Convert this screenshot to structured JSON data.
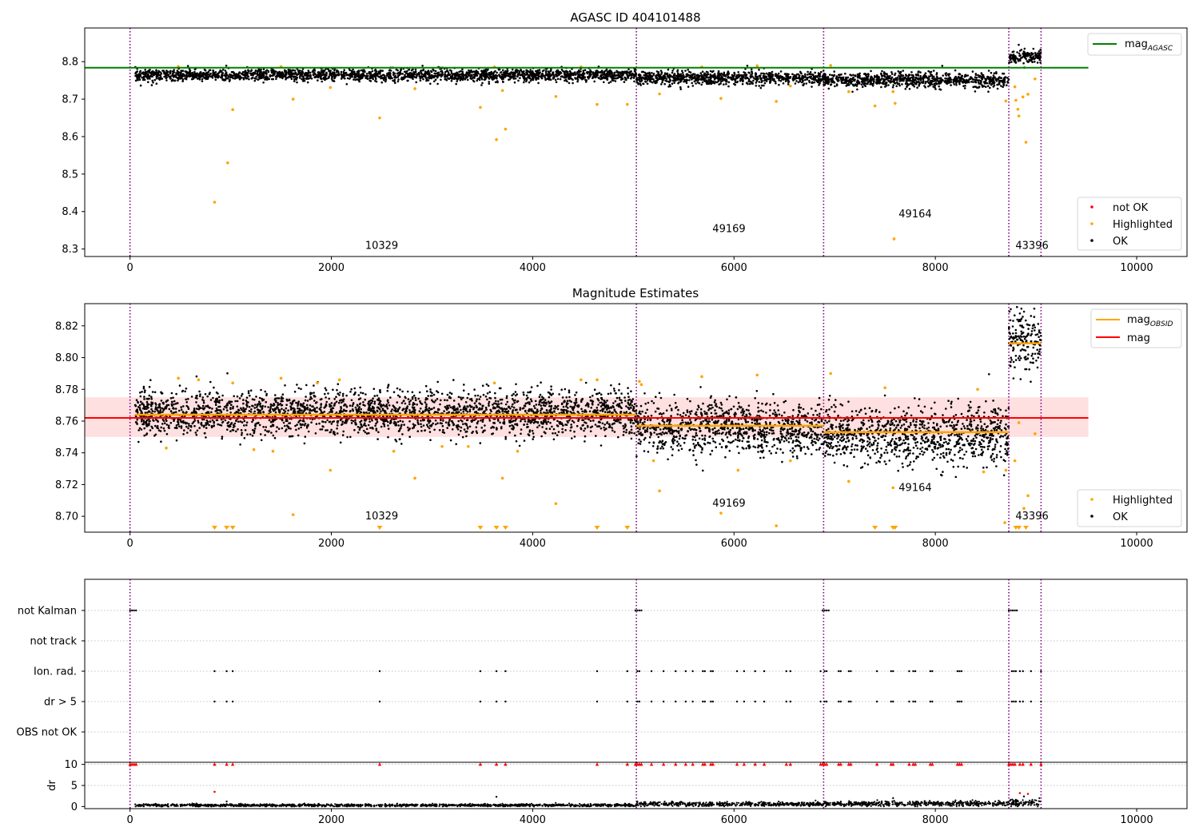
{
  "chart_data": [
    {
      "type": "scatter",
      "title": "AGASC ID 404101488",
      "xlim": [
        -450,
        10500
      ],
      "ylim": [
        8.28,
        8.89
      ],
      "xticks": [
        0,
        2000,
        4000,
        6000,
        8000,
        10000
      ],
      "yticks": [
        8.3,
        8.4,
        8.5,
        8.6,
        8.7,
        8.8
      ],
      "obsid_boundaries": [
        0,
        5030,
        6890,
        8730,
        9050
      ],
      "obsid_labels": [
        {
          "text": "10329",
          "x": 2500,
          "y": 8.3
        },
        {
          "text": "49169",
          "x": 5950,
          "y": 8.345
        },
        {
          "text": "49164",
          "x": 7800,
          "y": 8.385
        },
        {
          "text": "43396",
          "x": 8960,
          "y": 8.3
        }
      ],
      "mag_agasc": {
        "name": "magAGASC",
        "value": 8.784,
        "x_range": [
          -450,
          9520
        ],
        "color": "#008000"
      },
      "segments": [
        {
          "x": [
            50,
            5030
          ],
          "mean": 8.764,
          "spread": 0.008
        },
        {
          "x": [
            5030,
            6890
          ],
          "mean": 8.757,
          "spread": 0.009
        },
        {
          "x": [
            6890,
            8730
          ],
          "mean": 8.751,
          "spread": 0.01
        },
        {
          "x": [
            8730,
            9050
          ],
          "mean": 8.812,
          "spread": 0.01
        }
      ],
      "highlighted": [
        {
          "x": 840,
          "y": 8.425
        },
        {
          "x": 970,
          "y": 8.53
        },
        {
          "x": 1020,
          "y": 8.672
        },
        {
          "x": 1620,
          "y": 8.7
        },
        {
          "x": 2480,
          "y": 8.65
        },
        {
          "x": 3480,
          "y": 8.678
        },
        {
          "x": 3640,
          "y": 8.592
        },
        {
          "x": 3730,
          "y": 8.62
        },
        {
          "x": 3700,
          "y": 8.723
        },
        {
          "x": 4230,
          "y": 8.707
        },
        {
          "x": 4640,
          "y": 8.686
        },
        {
          "x": 4940,
          "y": 8.686
        },
        {
          "x": 5260,
          "y": 8.714
        },
        {
          "x": 5870,
          "y": 8.702
        },
        {
          "x": 6420,
          "y": 8.694
        },
        {
          "x": 7140,
          "y": 8.72
        },
        {
          "x": 7400,
          "y": 8.682
        },
        {
          "x": 7580,
          "y": 8.72
        },
        {
          "x": 7600,
          "y": 8.689
        },
        {
          "x": 7590,
          "y": 8.327
        },
        {
          "x": 8700,
          "y": 8.695
        },
        {
          "x": 8790,
          "y": 8.733
        },
        {
          "x": 8800,
          "y": 8.697
        },
        {
          "x": 8820,
          "y": 8.673
        },
        {
          "x": 8830,
          "y": 8.655
        },
        {
          "x": 8870,
          "y": 8.706
        },
        {
          "x": 8900,
          "y": 8.585
        },
        {
          "x": 8920,
          "y": 8.713
        },
        {
          "x": 8990,
          "y": 8.754
        },
        {
          "x": 480,
          "y": 8.787
        },
        {
          "x": 1500,
          "y": 8.787
        },
        {
          "x": 3620,
          "y": 8.786
        },
        {
          "x": 4480,
          "y": 8.786
        },
        {
          "x": 5680,
          "y": 8.786
        },
        {
          "x": 6230,
          "y": 8.789
        },
        {
          "x": 6960,
          "y": 8.79
        },
        {
          "x": 1990,
          "y": 8.731
        },
        {
          "x": 2830,
          "y": 8.728
        },
        {
          "x": 6560,
          "y": 8.735
        }
      ],
      "not_ok": [],
      "legend": [
        {
          "label": "not OK",
          "color": "#ff0000"
        },
        {
          "label": "Highlighted",
          "color": "#ffa500"
        },
        {
          "label": "OK",
          "color": "#000000"
        }
      ],
      "line_legend": [
        {
          "label": "mag",
          "subscript": "AGASC",
          "color": "#008000"
        }
      ]
    },
    {
      "type": "scatter",
      "title": "Magnitude Estimates",
      "xlim": [
        -450,
        10500
      ],
      "ylim": [
        8.69,
        8.834
      ],
      "xticks": [
        0,
        2000,
        4000,
        6000,
        8000,
        10000
      ],
      "yticks": [
        8.7,
        8.72,
        8.74,
        8.76,
        8.78,
        8.8,
        8.82
      ],
      "obsid_boundaries": [
        0,
        5030,
        6890,
        8730,
        9050
      ],
      "obsid_labels": [
        {
          "text": "10329",
          "x": 2500,
          "y": 8.698
        },
        {
          "text": "49169",
          "x": 5950,
          "y": 8.706
        },
        {
          "text": "49164",
          "x": 7800,
          "y": 8.716
        },
        {
          "text": "43396",
          "x": 8960,
          "y": 8.698
        }
      ],
      "mag": {
        "value": 8.762,
        "band": [
          8.75,
          8.775
        ],
        "x_range": [
          -450,
          9520
        ],
        "color": "#ff0000"
      },
      "mag_obsid": [
        {
          "x": [
            50,
            5030
          ],
          "value": 8.764
        },
        {
          "x": [
            5030,
            6890
          ],
          "value": 8.757
        },
        {
          "x": [
            6890,
            8730
          ],
          "value": 8.753
        },
        {
          "x": [
            8730,
            9050
          ],
          "value": 8.809
        }
      ],
      "segments": [
        {
          "x": [
            50,
            5030
          ],
          "mean": 8.765,
          "spread": 0.007
        },
        {
          "x": [
            5030,
            6890
          ],
          "mean": 8.756,
          "spread": 0.008
        },
        {
          "x": [
            6890,
            8730
          ],
          "mean": 8.751,
          "spread": 0.009
        },
        {
          "x": [
            8730,
            9050
          ],
          "mean": 8.812,
          "spread": 0.01
        }
      ],
      "highlighted": [
        {
          "x": 360,
          "y": 8.743
        },
        {
          "x": 480,
          "y": 8.787
        },
        {
          "x": 680,
          "y": 8.786
        },
        {
          "x": 1020,
          "y": 8.784
        },
        {
          "x": 1230,
          "y": 8.742
        },
        {
          "x": 1420,
          "y": 8.741
        },
        {
          "x": 1500,
          "y": 8.787
        },
        {
          "x": 1620,
          "y": 8.701
        },
        {
          "x": 1860,
          "y": 8.784
        },
        {
          "x": 1990,
          "y": 8.729
        },
        {
          "x": 2080,
          "y": 8.786
        },
        {
          "x": 2620,
          "y": 8.741
        },
        {
          "x": 2830,
          "y": 8.724
        },
        {
          "x": 3100,
          "y": 8.744
        },
        {
          "x": 3360,
          "y": 8.744
        },
        {
          "x": 3620,
          "y": 8.784
        },
        {
          "x": 3700,
          "y": 8.724
        },
        {
          "x": 3850,
          "y": 8.741
        },
        {
          "x": 4230,
          "y": 8.708
        },
        {
          "x": 4480,
          "y": 8.786
        },
        {
          "x": 4640,
          "y": 8.786
        },
        {
          "x": 5060,
          "y": 8.785
        },
        {
          "x": 5080,
          "y": 8.783
        },
        {
          "x": 5200,
          "y": 8.735
        },
        {
          "x": 5260,
          "y": 8.716
        },
        {
          "x": 5680,
          "y": 8.788
        },
        {
          "x": 5870,
          "y": 8.702
        },
        {
          "x": 6040,
          "y": 8.729
        },
        {
          "x": 6230,
          "y": 8.789
        },
        {
          "x": 6420,
          "y": 8.694
        },
        {
          "x": 6560,
          "y": 8.735
        },
        {
          "x": 6960,
          "y": 8.79
        },
        {
          "x": 7140,
          "y": 8.722
        },
        {
          "x": 7500,
          "y": 8.781
        },
        {
          "x": 7580,
          "y": 8.718
        },
        {
          "x": 8420,
          "y": 8.78
        },
        {
          "x": 8480,
          "y": 8.728
        },
        {
          "x": 8700,
          "y": 8.729
        },
        {
          "x": 8790,
          "y": 8.735
        },
        {
          "x": 8830,
          "y": 8.759
        },
        {
          "x": 8920,
          "y": 8.713
        },
        {
          "x": 8990,
          "y": 8.752
        },
        {
          "x": 8690,
          "y": 8.696
        },
        {
          "x": 8880,
          "y": 8.705
        }
      ],
      "below_axis_markers": [
        840,
        960,
        1020,
        2480,
        3480,
        3640,
        3730,
        4640,
        4940,
        7400,
        7580,
        7600,
        8800,
        8830,
        8900
      ],
      "legend": [
        {
          "label": "Highlighted",
          "color": "#ffa500"
        },
        {
          "label": "OK",
          "color": "#000000"
        }
      ],
      "line_legend": [
        {
          "label": "mag",
          "subscript": "OBSID",
          "color": "#ffa500"
        },
        {
          "label": "mag",
          "subscript": "",
          "color": "#ff0000"
        }
      ]
    },
    {
      "type": "scatter",
      "title": "",
      "xlim": [
        -450,
        10500
      ],
      "categories": [
        "not Kalman",
        "not track",
        "Ion. rad.",
        "dr > 5",
        "OBS not OK"
      ],
      "obsid_boundaries": [
        0,
        5030,
        6890,
        8730,
        9050
      ],
      "flags": {
        "not Kalman": [
          0,
          20,
          40,
          60,
          5020,
          5040,
          5060,
          5080,
          6880,
          6900,
          6920,
          6940,
          8730,
          8750,
          8770,
          8790,
          8810
        ],
        "not track": [],
        "Ion. rad.": [
          840,
          960,
          1020,
          2480,
          3480,
          3640,
          3730,
          4640,
          4940,
          5040,
          5060,
          5180,
          5300,
          5420,
          5520,
          5590,
          5690,
          5710,
          5770,
          5790,
          6030,
          6100,
          6210,
          6300,
          6520,
          6560,
          6860,
          6900,
          6920,
          7040,
          7060,
          7140,
          7160,
          7420,
          7560,
          7580,
          7740,
          7780,
          7800,
          7950,
          7970,
          8220,
          8240,
          8260,
          8760,
          8780,
          8800,
          8840,
          8870,
          8950,
          9050
        ],
        "dr > 5": [
          840,
          960,
          1020,
          2480,
          3480,
          3640,
          3730,
          4640,
          4940,
          5040,
          5060,
          5180,
          5300,
          5420,
          5520,
          5590,
          5690,
          5710,
          5770,
          5790,
          6030,
          6100,
          6210,
          6300,
          6520,
          6560,
          6860,
          6900,
          6920,
          7040,
          7060,
          7140,
          7160,
          7420,
          7560,
          7580,
          7740,
          7780,
          7800,
          7950,
          7970,
          8220,
          8240,
          8260,
          8760,
          8780,
          8800,
          8840,
          8870,
          8950,
          9050
        ],
        "OBS not OK": []
      }
    },
    {
      "type": "scatter",
      "title": "",
      "ylabel": "dr",
      "xlim": [
        -450,
        10500
      ],
      "ylim": [
        -0.5,
        10.5
      ],
      "xticks": [
        0,
        2000,
        4000,
        6000,
        8000,
        10000
      ],
      "yticks": [
        0,
        5,
        10
      ],
      "obsid_boundaries": [
        0,
        5030,
        6890,
        8730,
        9050
      ],
      "dr_segments": [
        {
          "x": [
            50,
            5030
          ],
          "mean": 0.3,
          "spread": 0.15
        },
        {
          "x": [
            5030,
            6890
          ],
          "mean": 0.6,
          "spread": 0.25
        },
        {
          "x": [
            6890,
            8730
          ],
          "mean": 0.7,
          "spread": 0.3
        },
        {
          "x": [
            8730,
            9050
          ],
          "mean": 0.9,
          "spread": 0.4
        }
      ],
      "capped_markers": [
        0,
        20,
        40,
        60,
        840,
        960,
        1020,
        2480,
        3480,
        3640,
        3730,
        4640,
        4940,
        5020,
        5040,
        5060,
        5080,
        5180,
        5300,
        5420,
        5520,
        5590,
        5690,
        5710,
        5770,
        5790,
        6030,
        6100,
        6210,
        6300,
        6520,
        6560,
        6860,
        6880,
        6900,
        6920,
        7040,
        7060,
        7140,
        7160,
        7420,
        7560,
        7580,
        7740,
        7780,
        7800,
        7950,
        7970,
        8220,
        8240,
        8260,
        8730,
        8750,
        8770,
        8790,
        8840,
        8870,
        8950,
        9050
      ],
      "dr_outliers_red": [
        {
          "x": 840,
          "y": 3.5
        },
        {
          "x": 8840,
          "y": 3.2
        },
        {
          "x": 8920,
          "y": 3.0
        }
      ],
      "dr_outliers_black": [
        {
          "x": 960,
          "y": 1.2
        },
        {
          "x": 3640,
          "y": 2.3
        },
        {
          "x": 7580,
          "y": 2.0
        },
        {
          "x": 8800,
          "y": 1.6
        },
        {
          "x": 8880,
          "y": 2.4
        }
      ]
    }
  ]
}
